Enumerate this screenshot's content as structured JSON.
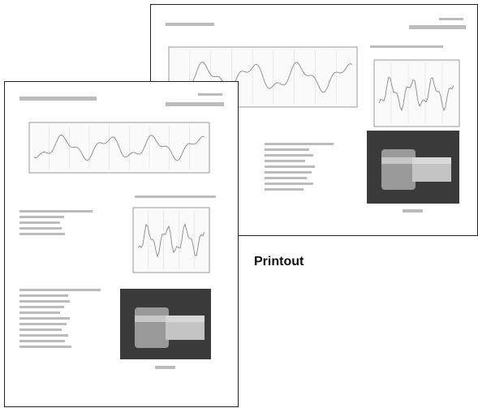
{
  "caption": "Printout"
}
